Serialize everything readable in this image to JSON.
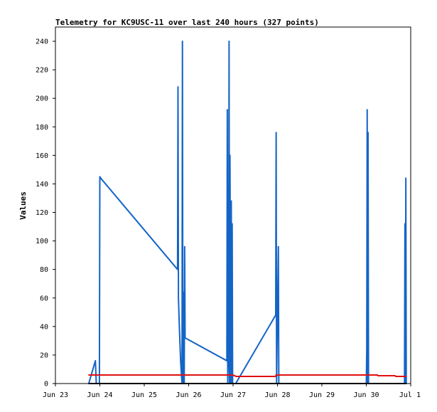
{
  "chart_data": {
    "type": "line",
    "title": "Telemetry for KC9USC-11 over last 240 hours (327 points)",
    "ylabel": "Values",
    "xlabel": "",
    "ylim": [
      0,
      250
    ],
    "xlim": [
      0,
      8
    ],
    "x_ticks": [
      {
        "value": 0,
        "label": "Jun 23"
      },
      {
        "value": 1,
        "label": "Jun 24"
      },
      {
        "value": 2,
        "label": "Jun 25"
      },
      {
        "value": 3,
        "label": "Jun 26"
      },
      {
        "value": 4,
        "label": "Jun 27"
      },
      {
        "value": 5,
        "label": "Jun 28"
      },
      {
        "value": 6,
        "label": "Jun 29"
      },
      {
        "value": 7,
        "label": "Jun 30"
      },
      {
        "value": 8,
        "label": "Jul 1"
      }
    ],
    "y_ticks": [
      0,
      20,
      40,
      60,
      80,
      100,
      120,
      140,
      160,
      180,
      200,
      220,
      240
    ],
    "grid": false,
    "series": [
      {
        "color": "#1464c8",
        "points": [
          [
            0.75,
            0
          ],
          [
            0.9,
            16
          ],
          [
            0.92,
            0
          ],
          [
            0.99,
            0
          ],
          [
            1.0,
            145
          ],
          [
            1.02,
            144
          ],
          [
            2.75,
            80
          ],
          [
            2.76,
            208
          ],
          [
            2.77,
            60
          ],
          [
            2.79,
            40
          ],
          [
            2.82,
            15
          ],
          [
            2.85,
            0
          ],
          [
            2.86,
            240
          ],
          [
            2.87,
            0
          ],
          [
            2.89,
            64
          ],
          [
            2.9,
            0
          ],
          [
            2.91,
            96
          ],
          [
            2.92,
            32
          ],
          [
            3.86,
            16
          ],
          [
            3.87,
            192
          ],
          [
            3.88,
            0
          ],
          [
            3.9,
            32
          ],
          [
            3.91,
            240
          ],
          [
            3.92,
            0
          ],
          [
            3.93,
            160
          ],
          [
            3.95,
            0
          ],
          [
            3.96,
            128
          ],
          [
            3.97,
            0
          ],
          [
            3.98,
            112
          ],
          [
            3.99,
            0
          ],
          [
            4.06,
            0
          ],
          [
            4.96,
            48
          ],
          [
            4.97,
            176
          ],
          [
            4.98,
            0
          ],
          [
            5.02,
            96
          ],
          [
            5.03,
            0
          ],
          [
            7.0,
            0
          ],
          [
            7.01,
            24
          ],
          [
            7.02,
            192
          ],
          [
            7.03,
            0
          ],
          [
            7.04,
            176
          ],
          [
            7.05,
            0
          ],
          [
            7.86,
            0
          ],
          [
            7.87,
            112
          ],
          [
            7.88,
            0
          ],
          [
            7.89,
            144
          ],
          [
            7.9,
            0
          ]
        ]
      },
      {
        "color": "#e01010",
        "points": [
          [
            0.75,
            6
          ],
          [
            3.99,
            6
          ],
          [
            4.07,
            5
          ],
          [
            4.96,
            5
          ],
          [
            4.97,
            6
          ],
          [
            7.25,
            6
          ],
          [
            7.26,
            5.5
          ],
          [
            7.65,
            5.5
          ],
          [
            7.66,
            5
          ],
          [
            7.9,
            5
          ]
        ]
      },
      {
        "color": "#000000",
        "points": [
          [
            0.75,
            0
          ],
          [
            7.9,
            0
          ]
        ]
      }
    ]
  }
}
